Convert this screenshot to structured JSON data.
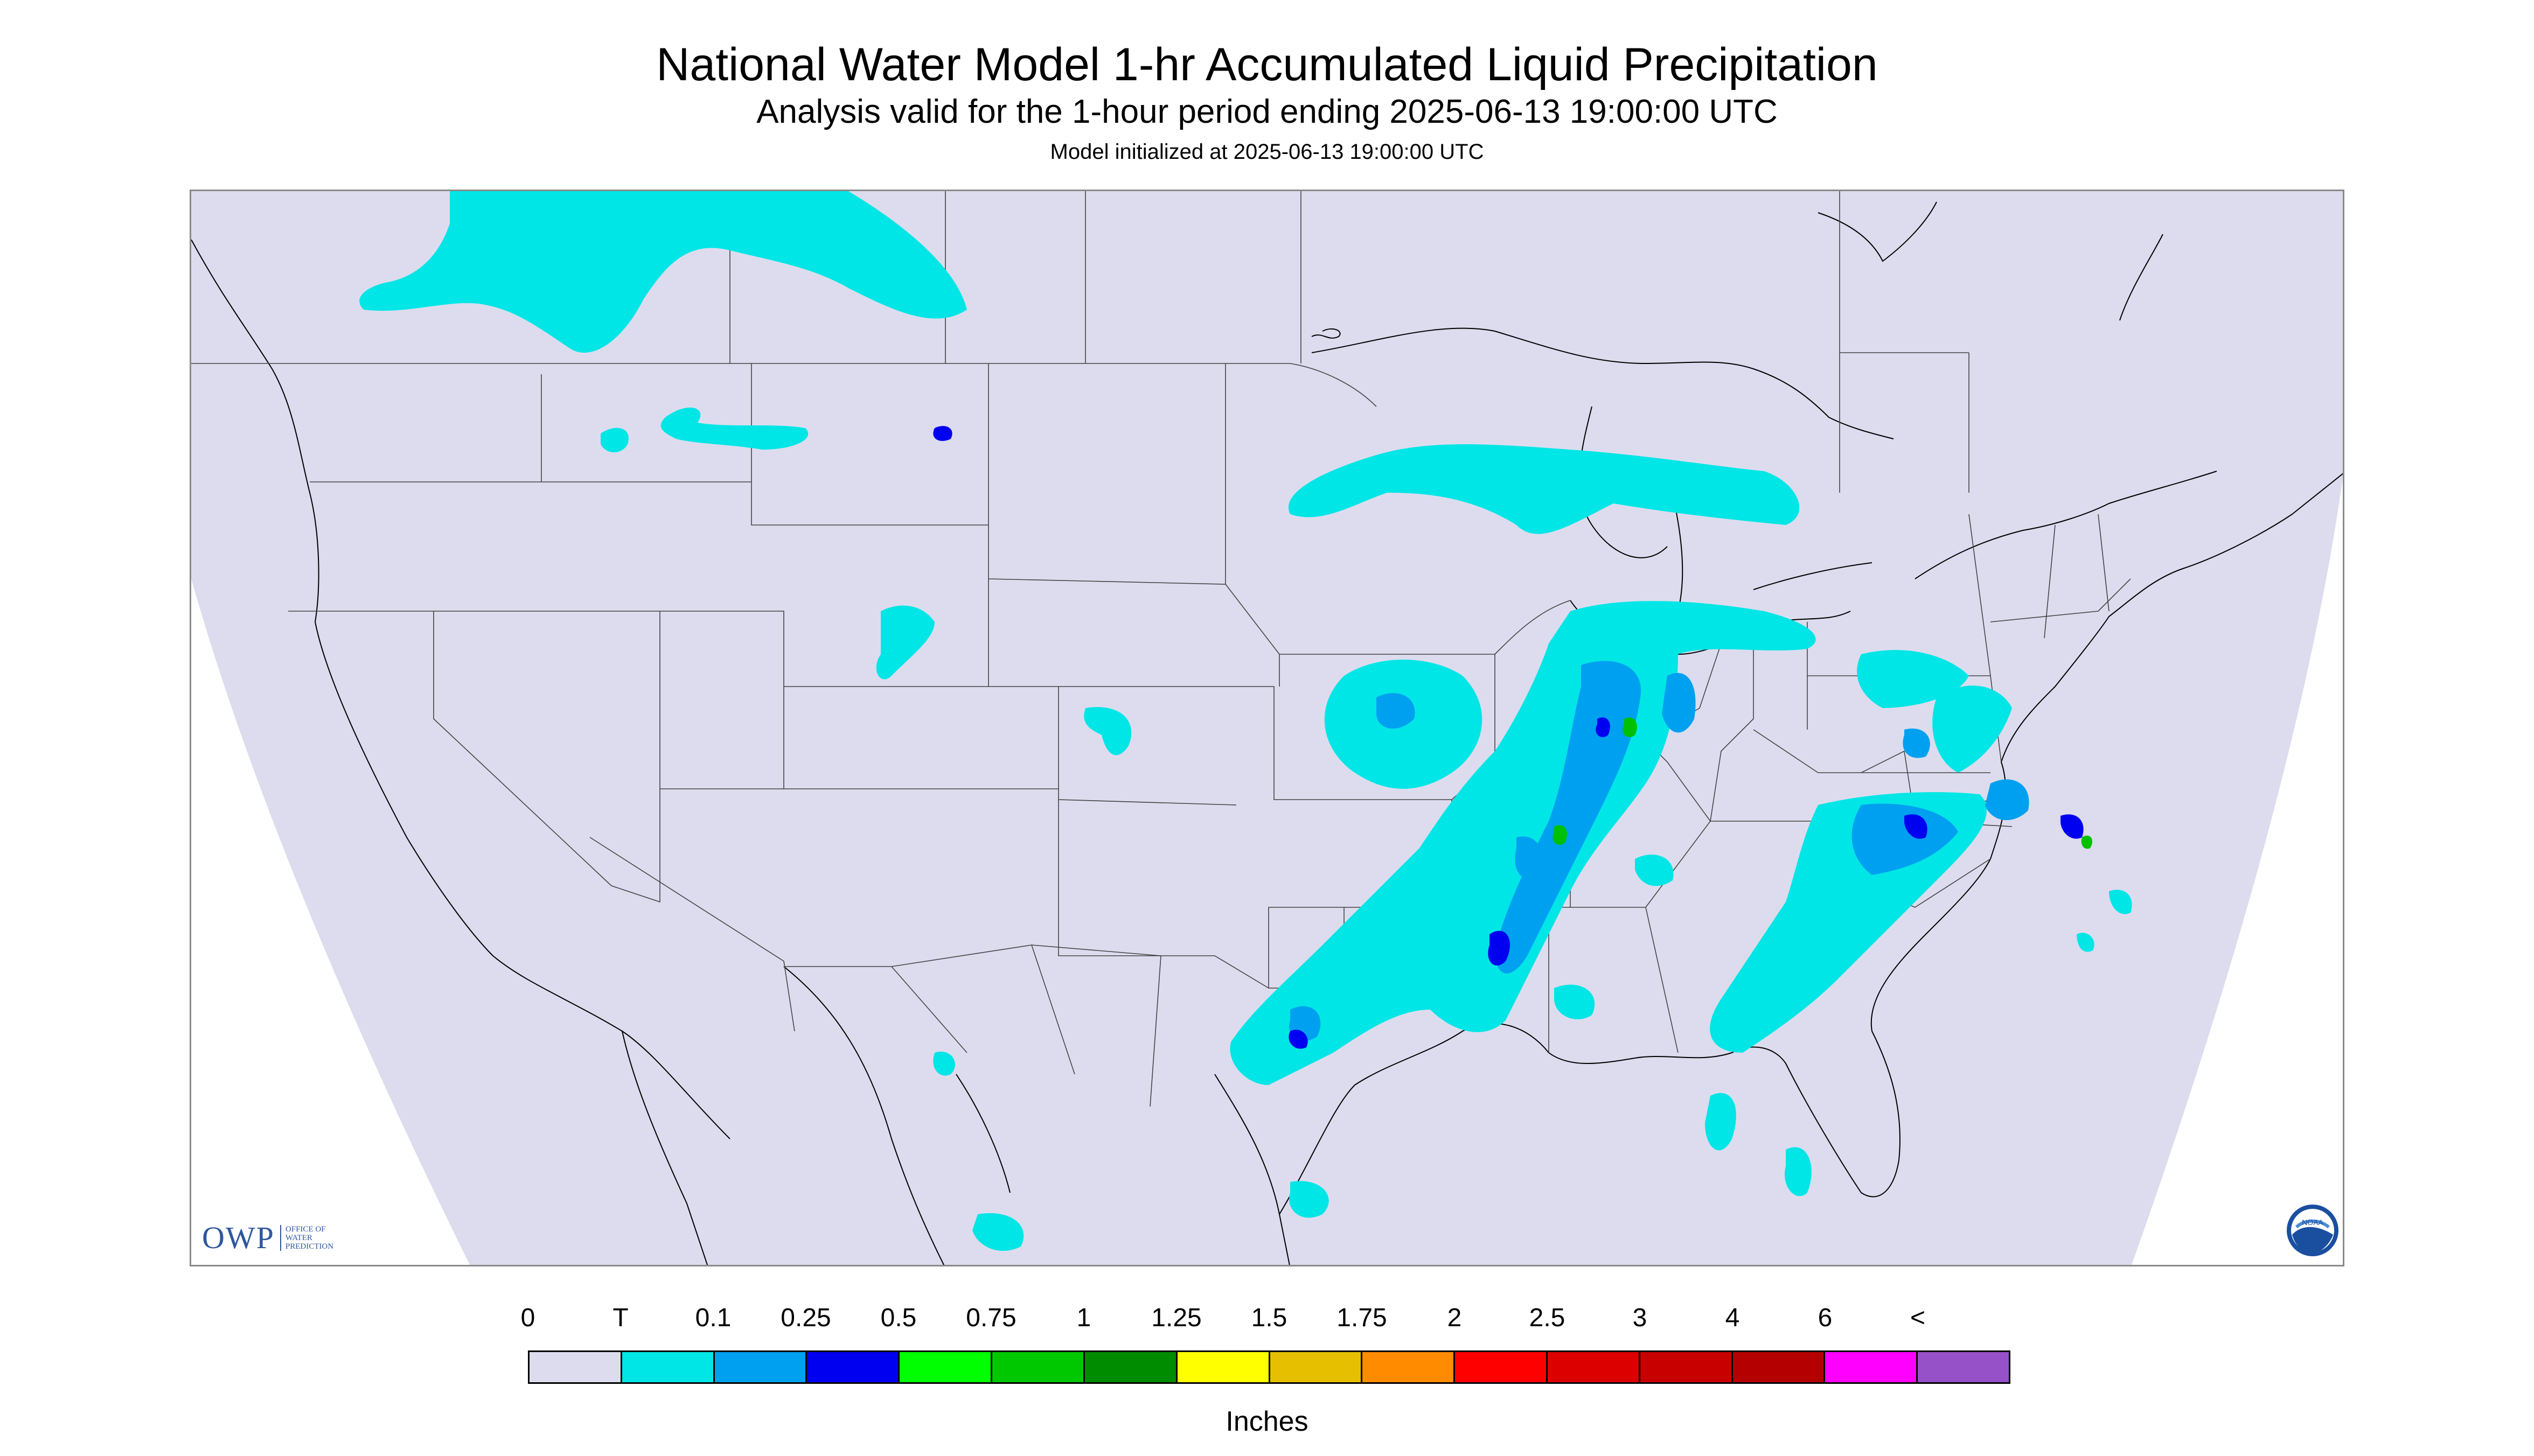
{
  "title": "National Water Model 1-hr Accumulated Liquid Precipitation",
  "subtitle": "Analysis valid for the 1-hour period ending 2025-06-13 19:00:00 UTC",
  "init_line": "Model initialized at 2025-06-13 19:00:00 UTC",
  "logo_owp": {
    "abbrev": "OWP",
    "line1": "OFFICE OF",
    "line2": "WATER",
    "line3": "PREDICTION"
  },
  "logo_noaa": {
    "text": "NOAA"
  },
  "colors": {
    "background": "#dcdcee",
    "rain_light": "#00e6e6",
    "rain_mid": "#00a0f0",
    "rain_heavy": "#0000f0",
    "rain_extreme": "#00c000"
  },
  "legend": {
    "units": "Inches",
    "labels": [
      "0",
      "T",
      "0.1",
      "0.25",
      "0.5",
      "0.75",
      "1",
      "1.25",
      "1.5",
      "1.75",
      "2",
      "2.5",
      "3",
      "4",
      "6",
      "<"
    ],
    "colors": [
      "#dcdcee",
      "#00e6e6",
      "#00a0f0",
      "#0000f0",
      "#00ff00",
      "#00c800",
      "#008c00",
      "#ffff00",
      "#e6c000",
      "#ff8c00",
      "#ff0000",
      "#dc0000",
      "#c80000",
      "#b40000",
      "#ff00ff",
      "#9650c8"
    ]
  }
}
